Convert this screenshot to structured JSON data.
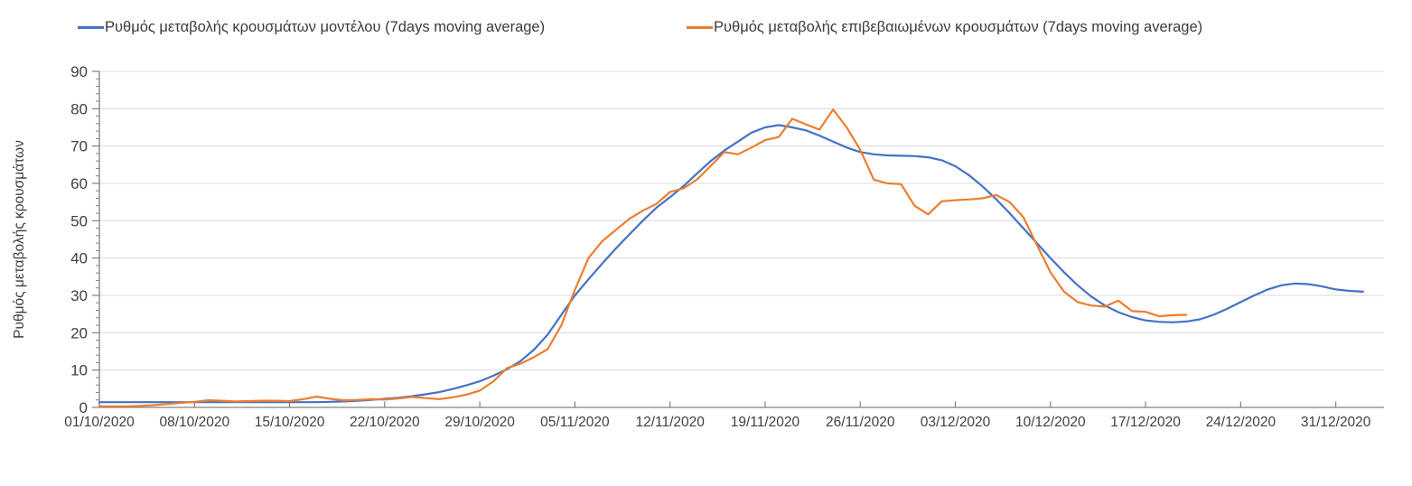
{
  "chart_data": {
    "type": "line",
    "title": "",
    "xlabel": "",
    "ylabel": "Ρυθμός μεταβολής κρουσμάτων",
    "ylim": [
      0,
      90
    ],
    "y_ticks": [
      0,
      10,
      20,
      30,
      40,
      50,
      60,
      70,
      80,
      90
    ],
    "y_minor_tick_step": 2,
    "grid": "horizontal-only",
    "legend_position": "top",
    "x_unit": "days since 01/10/2020",
    "x_ticks": [
      {
        "day": 0,
        "label": "01/10/2020"
      },
      {
        "day": 7,
        "label": "08/10/2020"
      },
      {
        "day": 14,
        "label": "15/10/2020"
      },
      {
        "day": 21,
        "label": "22/10/2020"
      },
      {
        "day": 28,
        "label": "29/10/2020"
      },
      {
        "day": 35,
        "label": "05/11/2020"
      },
      {
        "day": 42,
        "label": "12/11/2020"
      },
      {
        "day": 49,
        "label": "19/11/2020"
      },
      {
        "day": 56,
        "label": "26/11/2020"
      },
      {
        "day": 63,
        "label": "03/12/2020"
      },
      {
        "day": 70,
        "label": "10/12/2020"
      },
      {
        "day": 77,
        "label": "17/12/2020"
      },
      {
        "day": 84,
        "label": "24/12/2020"
      },
      {
        "day": 91,
        "label": "31/12/2020"
      }
    ],
    "series": [
      {
        "name": "Ρυθμός μεταβολής κρουσμάτων μοντέλου (7days moving average)",
        "color": "#4472c4",
        "values": [
          1.4,
          1.4,
          1.4,
          1.4,
          1.4,
          1.4,
          1.4,
          1.4,
          1.4,
          1.4,
          1.4,
          1.4,
          1.4,
          1.4,
          1.4,
          1.4,
          1.4,
          1.5,
          1.6,
          1.8,
          2.0,
          2.3,
          2.6,
          3.0,
          3.5,
          4.1,
          4.9,
          5.9,
          7.0,
          8.5,
          10.2,
          12.4,
          15.5,
          19.5,
          24.8,
          30.0,
          34.3,
          38.5,
          42.5,
          46.3,
          50.0,
          53.5,
          56.3,
          59.3,
          62.7,
          66.0,
          68.8,
          71.2,
          73.6,
          75.0,
          75.6,
          75.0,
          74.2,
          72.8,
          71.2,
          69.6,
          68.4,
          67.8,
          67.5,
          67.4,
          67.3,
          67.0,
          66.2,
          64.6,
          62.2,
          59.2,
          55.8,
          52.0,
          48.0,
          44.0,
          40.0,
          36.2,
          32.7,
          29.7,
          27.3,
          25.5,
          24.2,
          23.3,
          22.9,
          22.8,
          23.0,
          23.6,
          24.8,
          26.4,
          28.2,
          30.0,
          31.6,
          32.7,
          33.2,
          33.0,
          32.4,
          31.6,
          31.2,
          31.0
        ]
      },
      {
        "name": "Ρυθμός μεταβολής επιβεβαιωμένων κρουσμάτων (7days moving average)",
        "color": "#ed7d31",
        "values": [
          0.3,
          0.3,
          0.3,
          0.4,
          0.6,
          0.9,
          1.2,
          1.5,
          1.9,
          1.8,
          1.6,
          1.7,
          1.8,
          1.8,
          1.7,
          2.2,
          2.9,
          2.3,
          1.9,
          2.0,
          2.2,
          2.1,
          2.4,
          2.8,
          2.5,
          2.2,
          2.7,
          3.4,
          4.5,
          7.0,
          10.5,
          11.7,
          13.5,
          15.6,
          22.0,
          31.5,
          40.0,
          44.5,
          47.5,
          50.5,
          52.7,
          54.5,
          57.7,
          58.7,
          61.1,
          64.7,
          68.4,
          67.8,
          69.6,
          71.6,
          72.4,
          77.3,
          75.8,
          74.4,
          79.8,
          75.0,
          69.0,
          61.0,
          60.0,
          59.8,
          54.0,
          51.7,
          55.2,
          55.5,
          55.7,
          56.0,
          56.9,
          55.0,
          51.0,
          43.5,
          36.2,
          31.0,
          28.2,
          27.3,
          27.0,
          28.6,
          25.8,
          25.6,
          24.4,
          24.7,
          24.8,
          null,
          null,
          null,
          null,
          null,
          null,
          null,
          null,
          null,
          null,
          null,
          null,
          null
        ]
      }
    ],
    "style": {
      "gridline_color": "#d9d9d9",
      "axis_color": "#808080",
      "tick_label_color": "#404040",
      "line_width": 2.2
    }
  }
}
